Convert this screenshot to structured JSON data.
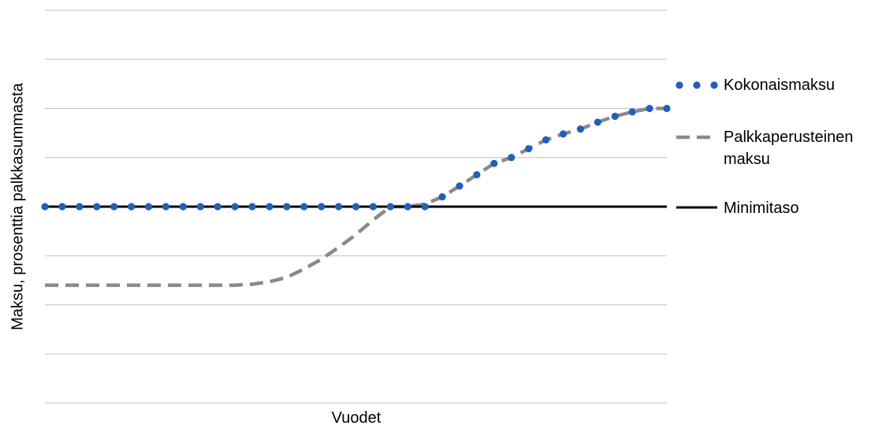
{
  "chart_data": {
    "type": "line",
    "xlabel": "Vuodet",
    "ylabel": "Maksu, prosenttia palkkasummasta",
    "grid": true,
    "legend_position": "right",
    "y_gridlines": 8,
    "x_count": 37,
    "series": [
      {
        "name": "Kokonaismaksu",
        "style": "dotted",
        "color": "#1f5fbf",
        "values": [
          4,
          4,
          4,
          4,
          4,
          4,
          4,
          4,
          4,
          4,
          4,
          4,
          4,
          4,
          4,
          4,
          4,
          4,
          4,
          4,
          4,
          4,
          4,
          4.2,
          4.42,
          4.65,
          4.88,
          5.0,
          5.18,
          5.36,
          5.48,
          5.58,
          5.72,
          5.84,
          5.93,
          6.0,
          6.0
        ]
      },
      {
        "name": "Palkkaperusteinen maksu",
        "style": "dashed",
        "color": "#8a8a8a",
        "values": [
          2.4,
          2.4,
          2.4,
          2.4,
          2.4,
          2.4,
          2.4,
          2.4,
          2.4,
          2.4,
          2.4,
          2.4,
          2.42,
          2.47,
          2.56,
          2.73,
          2.93,
          3.17,
          3.43,
          3.73,
          4.0,
          4.0,
          4.05,
          4.2,
          4.42,
          4.65,
          4.88,
          5.0,
          5.18,
          5.36,
          5.48,
          5.58,
          5.72,
          5.84,
          5.93,
          6.0,
          6.0
        ]
      },
      {
        "name": "Minimitaso",
        "style": "solid",
        "color": "#000000",
        "values": [
          4,
          4,
          4,
          4,
          4,
          4,
          4,
          4,
          4,
          4,
          4,
          4,
          4,
          4,
          4,
          4,
          4,
          4,
          4,
          4,
          4,
          4,
          4,
          4,
          4,
          4,
          4,
          4,
          4,
          4,
          4,
          4,
          4,
          4,
          4,
          4,
          4
        ]
      }
    ],
    "legend": {
      "kokonais": "Kokonaismaksu",
      "palkka_line1": "Palkkaperusteinen",
      "palkka_line2": "maksu",
      "minimi": "Minimitaso"
    }
  }
}
